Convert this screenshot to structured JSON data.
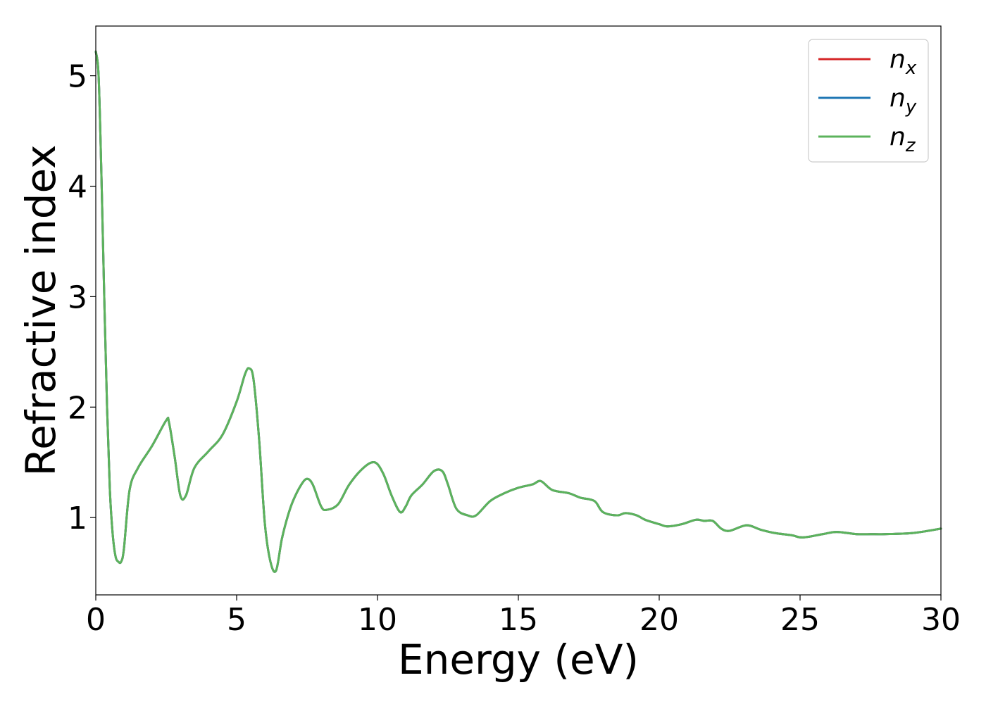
{
  "chart_data": {
    "type": "line",
    "xlabel": "Energy (eV)",
    "ylabel": "Refractive index",
    "xlim": [
      0,
      30
    ],
    "ylim": [
      0.3,
      5.45
    ],
    "xticks": [
      "0",
      "5",
      "10",
      "15",
      "20",
      "25",
      "30"
    ],
    "yticks": [
      "1",
      "2",
      "3",
      "4",
      "5"
    ],
    "grid": false,
    "legend_position": "top-right",
    "series": [
      {
        "name": "n_x",
        "label_base": "n",
        "label_sub": "x",
        "color": "#d62728",
        "x": [
          0,
          0.1,
          0.2,
          0.3,
          0.4,
          0.5,
          0.6,
          0.7,
          0.8,
          0.9,
          1.0,
          1.2,
          1.5,
          2.0,
          2.5,
          2.6,
          2.8,
          3.0,
          3.2,
          3.5,
          4.0,
          4.5,
          5.0,
          5.3,
          5.45,
          5.6,
          5.8,
          6.0,
          6.2,
          6.4,
          6.6,
          6.8,
          7.0,
          7.3,
          7.5,
          7.7,
          8.0,
          8.2,
          8.6,
          9.0,
          9.5,
          9.9,
          10.2,
          10.5,
          10.8,
          11.0,
          11.2,
          11.6,
          12.0,
          12.3,
          12.5,
          12.8,
          13.2,
          13.5,
          14.0,
          14.5,
          15.0,
          15.5,
          15.8,
          16.2,
          16.8,
          17.2,
          17.7,
          18.0,
          18.5,
          18.8,
          19.2,
          19.5,
          20.0,
          20.3,
          20.8,
          21.3,
          21.6,
          21.9,
          22.2,
          22.5,
          23.1,
          23.6,
          24.1,
          24.7,
          25.1,
          25.8,
          26.3,
          27.0,
          27.5,
          28.0,
          29.0,
          30.0
        ],
        "y": [
          5.22,
          5.0,
          4.1,
          3.0,
          2.0,
          1.25,
          0.85,
          0.65,
          0.6,
          0.6,
          0.72,
          1.25,
          1.45,
          1.65,
          1.88,
          1.86,
          1.55,
          1.2,
          1.2,
          1.45,
          1.6,
          1.75,
          2.05,
          2.3,
          2.35,
          2.25,
          1.7,
          0.95,
          0.6,
          0.52,
          0.8,
          1.0,
          1.15,
          1.3,
          1.35,
          1.3,
          1.1,
          1.07,
          1.12,
          1.3,
          1.45,
          1.5,
          1.4,
          1.2,
          1.05,
          1.1,
          1.2,
          1.3,
          1.42,
          1.42,
          1.3,
          1.08,
          1.02,
          1.02,
          1.15,
          1.22,
          1.27,
          1.3,
          1.33,
          1.25,
          1.22,
          1.18,
          1.15,
          1.05,
          1.02,
          1.04,
          1.02,
          0.98,
          0.94,
          0.92,
          0.94,
          0.98,
          0.97,
          0.97,
          0.9,
          0.88,
          0.93,
          0.89,
          0.86,
          0.84,
          0.82,
          0.85,
          0.87,
          0.85,
          0.85,
          0.85,
          0.86,
          0.9
        ]
      },
      {
        "name": "n_y",
        "label_base": "n",
        "label_sub": "y",
        "color": "#1f77b4",
        "x": [
          0,
          0.1,
          0.2,
          0.3,
          0.4,
          0.5,
          0.6,
          0.7,
          0.8,
          0.9,
          1.0,
          1.2,
          1.5,
          2.0,
          2.5,
          2.6,
          2.8,
          3.0,
          3.2,
          3.5,
          4.0,
          4.5,
          5.0,
          5.3,
          5.45,
          5.6,
          5.8,
          6.0,
          6.2,
          6.4,
          6.6,
          6.8,
          7.0,
          7.3,
          7.5,
          7.7,
          8.0,
          8.2,
          8.6,
          9.0,
          9.5,
          9.9,
          10.2,
          10.5,
          10.8,
          11.0,
          11.2,
          11.6,
          12.0,
          12.3,
          12.5,
          12.8,
          13.2,
          13.5,
          14.0,
          14.5,
          15.0,
          15.5,
          15.8,
          16.2,
          16.8,
          17.2,
          17.7,
          18.0,
          18.5,
          18.8,
          19.2,
          19.5,
          20.0,
          20.3,
          20.8,
          21.3,
          21.6,
          21.9,
          22.2,
          22.5,
          23.1,
          23.6,
          24.1,
          24.7,
          25.1,
          25.8,
          26.3,
          27.0,
          27.5,
          28.0,
          29.0,
          30.0
        ],
        "y": [
          5.22,
          5.0,
          4.1,
          3.0,
          2.0,
          1.25,
          0.85,
          0.65,
          0.6,
          0.6,
          0.72,
          1.25,
          1.45,
          1.65,
          1.88,
          1.86,
          1.55,
          1.2,
          1.2,
          1.45,
          1.6,
          1.75,
          2.05,
          2.3,
          2.35,
          2.25,
          1.7,
          0.95,
          0.6,
          0.52,
          0.8,
          1.0,
          1.15,
          1.3,
          1.35,
          1.3,
          1.1,
          1.07,
          1.12,
          1.3,
          1.45,
          1.5,
          1.4,
          1.2,
          1.05,
          1.1,
          1.2,
          1.3,
          1.42,
          1.42,
          1.3,
          1.08,
          1.02,
          1.02,
          1.15,
          1.22,
          1.27,
          1.3,
          1.33,
          1.25,
          1.22,
          1.18,
          1.15,
          1.05,
          1.02,
          1.04,
          1.02,
          0.98,
          0.94,
          0.92,
          0.94,
          0.98,
          0.97,
          0.97,
          0.9,
          0.88,
          0.93,
          0.89,
          0.86,
          0.84,
          0.82,
          0.85,
          0.87,
          0.85,
          0.85,
          0.85,
          0.86,
          0.9
        ]
      },
      {
        "name": "n_z",
        "label_base": "n",
        "label_sub": "z",
        "color": "#5cb35c",
        "x": [
          0,
          0.1,
          0.2,
          0.3,
          0.4,
          0.5,
          0.6,
          0.7,
          0.8,
          0.9,
          1.0,
          1.2,
          1.5,
          2.0,
          2.5,
          2.6,
          2.8,
          3.0,
          3.2,
          3.5,
          4.0,
          4.5,
          5.0,
          5.3,
          5.45,
          5.6,
          5.8,
          6.0,
          6.2,
          6.4,
          6.6,
          6.8,
          7.0,
          7.3,
          7.5,
          7.7,
          8.0,
          8.2,
          8.6,
          9.0,
          9.5,
          9.9,
          10.2,
          10.5,
          10.8,
          11.0,
          11.2,
          11.6,
          12.0,
          12.3,
          12.5,
          12.8,
          13.2,
          13.5,
          14.0,
          14.5,
          15.0,
          15.5,
          15.8,
          16.2,
          16.8,
          17.2,
          17.7,
          18.0,
          18.5,
          18.8,
          19.2,
          19.5,
          20.0,
          20.3,
          20.8,
          21.3,
          21.6,
          21.9,
          22.2,
          22.5,
          23.1,
          23.6,
          24.1,
          24.7,
          25.1,
          25.8,
          26.3,
          27.0,
          27.5,
          28.0,
          29.0,
          30.0
        ],
        "y": [
          5.22,
          5.0,
          4.1,
          3.0,
          2.0,
          1.25,
          0.85,
          0.65,
          0.6,
          0.6,
          0.72,
          1.25,
          1.45,
          1.65,
          1.88,
          1.86,
          1.55,
          1.2,
          1.2,
          1.45,
          1.6,
          1.75,
          2.05,
          2.3,
          2.35,
          2.25,
          1.7,
          0.95,
          0.6,
          0.52,
          0.8,
          1.0,
          1.15,
          1.3,
          1.35,
          1.3,
          1.1,
          1.07,
          1.12,
          1.3,
          1.45,
          1.5,
          1.4,
          1.2,
          1.05,
          1.1,
          1.2,
          1.3,
          1.42,
          1.42,
          1.3,
          1.08,
          1.02,
          1.02,
          1.15,
          1.22,
          1.27,
          1.3,
          1.33,
          1.25,
          1.22,
          1.18,
          1.15,
          1.05,
          1.02,
          1.04,
          1.02,
          0.98,
          0.94,
          0.92,
          0.94,
          0.98,
          0.97,
          0.97,
          0.9,
          0.88,
          0.93,
          0.89,
          0.86,
          0.84,
          0.82,
          0.85,
          0.87,
          0.85,
          0.85,
          0.85,
          0.86,
          0.9
        ]
      }
    ]
  }
}
